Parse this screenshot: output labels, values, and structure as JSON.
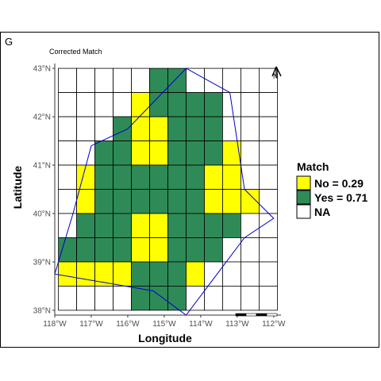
{
  "panel_tag": "G",
  "chart_data": {
    "type": "heatmap",
    "title": "Corrected Match",
    "xlabel": "Longitude",
    "ylabel": "Latitude",
    "xlim": [
      -118,
      -111.8
    ],
    "ylim": [
      37.9,
      43.1
    ],
    "x_ticks": [
      {
        "value": -118,
        "label": "118°W"
      },
      {
        "value": -117,
        "label": "117°W"
      },
      {
        "value": -116,
        "label": "116°W"
      },
      {
        "value": -115,
        "label": "115°W"
      },
      {
        "value": -114,
        "label": "114°W"
      },
      {
        "value": -113,
        "label": "113°W"
      },
      {
        "value": -112,
        "label": "112°W"
      }
    ],
    "y_ticks": [
      {
        "value": 38,
        "label": "38°N"
      },
      {
        "value": 39,
        "label": "39°N"
      },
      {
        "value": 40,
        "label": "40°N"
      },
      {
        "value": 41,
        "label": "41°N"
      },
      {
        "value": 42,
        "label": "42°N"
      },
      {
        "value": 43,
        "label": "43°N"
      }
    ],
    "grid": {
      "lon_start": -117.9,
      "lat_top": 43.0,
      "cell_size": 0.5,
      "rows": [
        "NNNNNGGNNNNN",
        "NNNNYGGGGNNN",
        "NNNGYYGGGNNN",
        "NNGGYYGGGYNN",
        "NYGGGGGGYYNN",
        "NYGGGGGGYYYN",
        "NGGGYYGGGGNN",
        "GGGGYYGGGNNN",
        "YYYYGGGYNNNN",
        "NNNNGGGNNNNN"
      ]
    },
    "legend": {
      "title": "Match",
      "placement": "right",
      "entries": [
        {
          "code": "Y",
          "label": "No = 0.29",
          "color": "#ffff00"
        },
        {
          "code": "G",
          "label": "Yes = 0.71",
          "color": "#2e8b57"
        },
        {
          "code": "N",
          "label": "NA",
          "color": "#ffffff"
        }
      ]
    },
    "boundary": {
      "color": "#0000cc",
      "points": [
        [
          -114.4,
          43.0
        ],
        [
          -113.2,
          42.5
        ],
        [
          -112.8,
          40.5
        ],
        [
          -112.0,
          39.9
        ],
        [
          -112.8,
          39.5
        ],
        [
          -114.4,
          37.9
        ],
        [
          -115.3,
          38.4
        ],
        [
          -118.0,
          38.75
        ],
        [
          -117.5,
          40.0
        ],
        [
          -117.0,
          41.4
        ],
        [
          -116.0,
          41.75
        ],
        [
          -114.4,
          43.0
        ]
      ]
    },
    "north_arrow": "N"
  }
}
